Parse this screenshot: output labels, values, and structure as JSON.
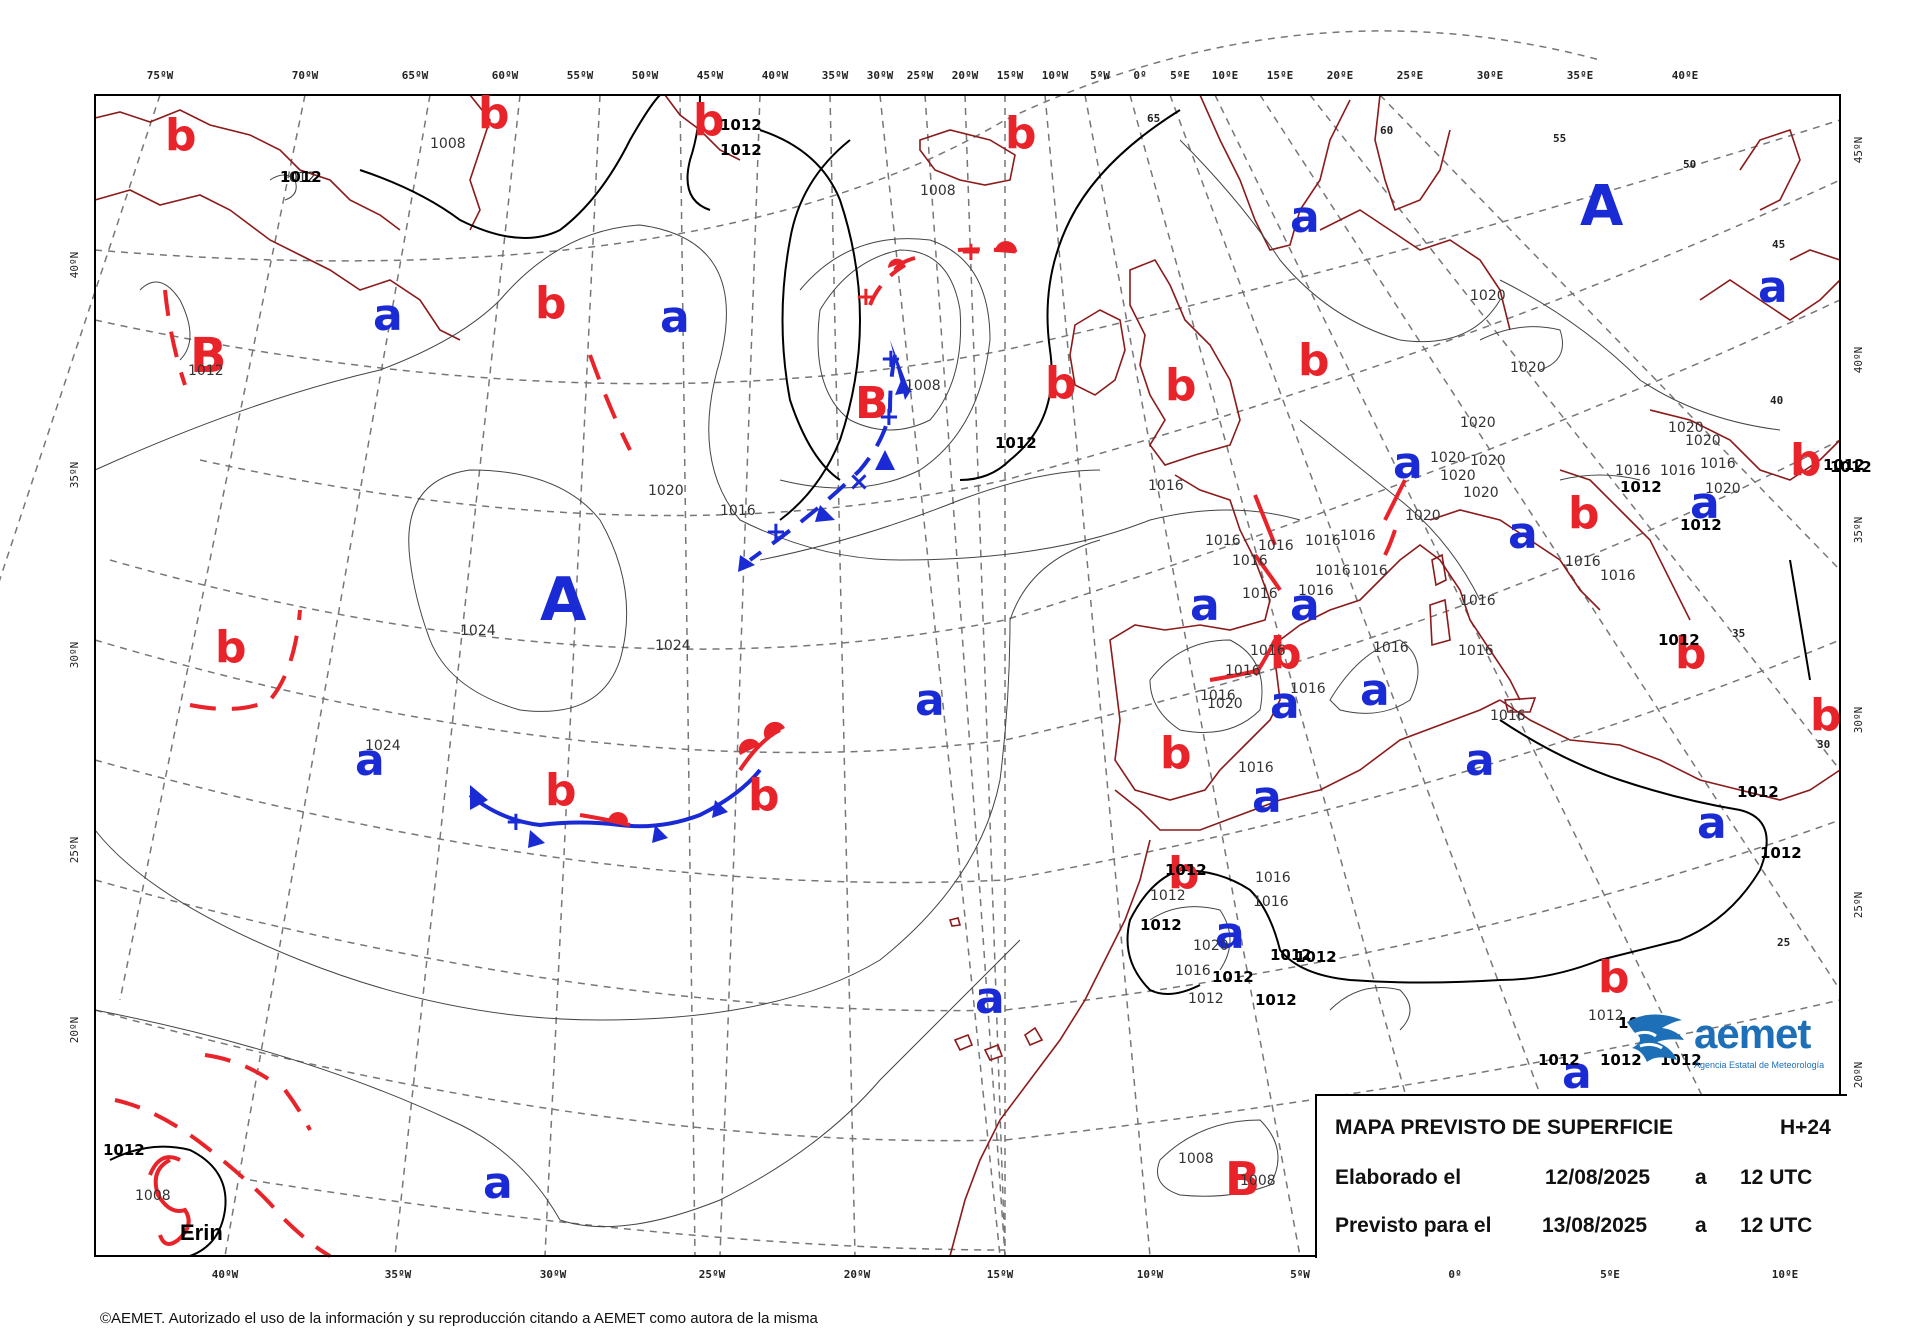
{
  "map": {
    "top_lon_labels": [
      "75ºW",
      "70ºW",
      "65ºW",
      "60ºW",
      "55ºW",
      "50ºW",
      "45ºW",
      "40ºW",
      "35ºW",
      "30ºW",
      "25ºW",
      "20ºW",
      "15ºW",
      "10ºW",
      "5ºW",
      "0º",
      "5ºE",
      "10ºE",
      "15ºE",
      "20ºE",
      "25ºE",
      "30ºE",
      "35ºE",
      "40ºE"
    ],
    "bottom_lon_labels": [
      "40ºW",
      "35ºW",
      "30ºW",
      "25ºW",
      "20ºW",
      "15ºW",
      "10ºW",
      "5ºW",
      "0º",
      "5ºE",
      "10ºE"
    ],
    "left_lat_labels": [
      "40ºN",
      "35ºN",
      "30ºN",
      "25ºN",
      "20ºN"
    ],
    "right_lat_labels": [
      "45ºN",
      "40ºN",
      "35ºN",
      "30ºN",
      "25ºN",
      "20ºN"
    ],
    "grid_lat_labels": [
      "65",
      "60",
      "55",
      "50",
      "45",
      "40",
      "35",
      "30",
      "25"
    ],
    "pressure_centers": [
      {
        "label": "A",
        "kind": "high"
      },
      {
        "label": "A",
        "kind": "high"
      },
      {
        "label": "B",
        "kind": "low"
      },
      {
        "label": "B",
        "kind": "low"
      },
      {
        "label": "B",
        "kind": "low"
      },
      {
        "label": "b",
        "kind": "low"
      },
      {
        "label": "a",
        "kind": "high"
      }
    ],
    "isobar_labels": [
      "1008",
      "1012",
      "1016",
      "1020",
      "1024"
    ],
    "storm_name": "Erin"
  },
  "info": {
    "title": "MAPA PREVISTO DE SUPERFICIE",
    "lead": "H+24",
    "made_label": "Elaborado el",
    "made_date": "12/08/2025",
    "at": "a",
    "made_time": "12 UTC",
    "valid_label": "Previsto para el",
    "valid_date": "13/08/2025",
    "valid_time": "12 UTC"
  },
  "logo": {
    "name": "aemet",
    "subtitle": "Agencia Estatal de Meteorología",
    "brand_color": "#1d6fb8"
  },
  "copyright": "©AEMET. Autorizado el uso de la información y su reproducción citando a AEMET como autora de la misma",
  "colors": {
    "low": "#e8242a",
    "high": "#1a2bd6",
    "coast": "#8b1a1a"
  }
}
